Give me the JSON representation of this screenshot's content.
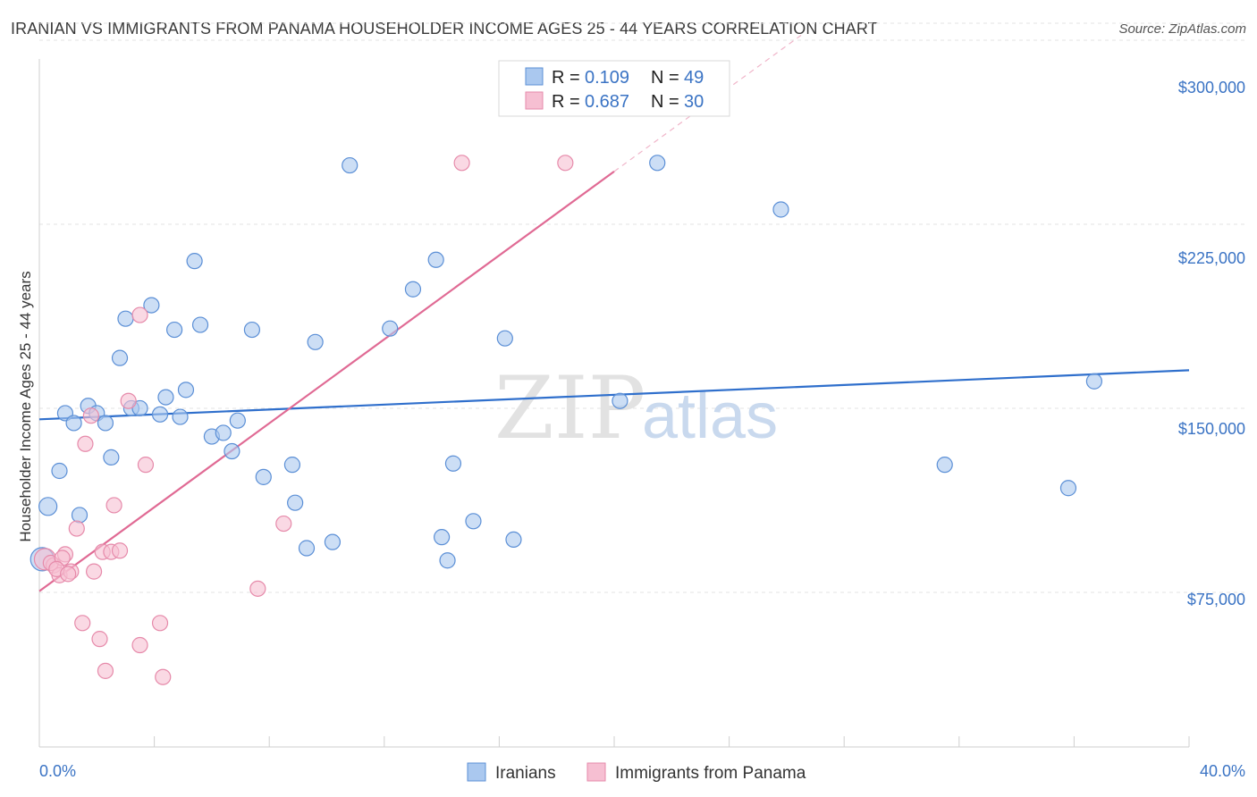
{
  "title": "IRANIAN VS IMMIGRANTS FROM PANAMA HOUSEHOLDER INCOME AGES 25 - 44 YEARS CORRELATION CHART",
  "source": "Source: ZipAtlas.com",
  "watermark": {
    "part1": "ZIP",
    "part2": "atlas"
  },
  "colors": {
    "blue_fill": "#aac8ef",
    "blue_stroke": "#5b8fd6",
    "blue_line": "#2f6fcc",
    "pink_fill": "#f6bfd2",
    "pink_stroke": "#e68aaa",
    "pink_line": "#e06a94",
    "grid": "#e3e3e3",
    "axis_text": "#3a73c4"
  },
  "legend": {
    "r_label": "R =",
    "n_label": "N =",
    "rows": [
      {
        "series": "Iranians",
        "r": "0.109",
        "n": "49"
      },
      {
        "series": "Immigrants from Panama",
        "r": "0.687",
        "n": "30"
      }
    ]
  },
  "chart_data": {
    "type": "scatter",
    "title": "IRANIAN VS IMMIGRANTS FROM PANAMA HOUSEHOLDER INCOME AGES 25 - 44 YEARS CORRELATION CHART",
    "xlabel": "",
    "ylabel": "Householder Income Ages 25 - 44 years",
    "xlim": [
      0,
      40
    ],
    "ylim": [
      12000,
      312000
    ],
    "x_tick_labels": [
      "0.0%",
      "40.0%"
    ],
    "y_ticks": [
      75000,
      150000,
      225000,
      300000
    ],
    "y_tick_labels": [
      "$75,000",
      "$150,000",
      "$225,000",
      "$300,000"
    ],
    "legend_position": "top-center",
    "grid": true,
    "series": [
      {
        "name": "Iranians",
        "trend": {
          "x0": 0,
          "y0": 145500,
          "x1": 40,
          "y1": 165500
        },
        "points": [
          {
            "x": 0.3,
            "y": 110000
          },
          {
            "x": 0.7,
            "y": 124500
          },
          {
            "x": 0.9,
            "y": 148000
          },
          {
            "x": 1.2,
            "y": 144000
          },
          {
            "x": 1.4,
            "y": 106500
          },
          {
            "x": 1.7,
            "y": 151000
          },
          {
            "x": 2.0,
            "y": 148000
          },
          {
            "x": 2.3,
            "y": 144000
          },
          {
            "x": 2.5,
            "y": 130000
          },
          {
            "x": 2.8,
            "y": 170500
          },
          {
            "x": 3.0,
            "y": 186500
          },
          {
            "x": 3.2,
            "y": 150000
          },
          {
            "x": 3.5,
            "y": 150000
          },
          {
            "x": 3.9,
            "y": 192000
          },
          {
            "x": 4.2,
            "y": 147500
          },
          {
            "x": 4.4,
            "y": 154500
          },
          {
            "x": 4.7,
            "y": 182000
          },
          {
            "x": 4.9,
            "y": 146500
          },
          {
            "x": 5.1,
            "y": 157500
          },
          {
            "x": 5.4,
            "y": 210000
          },
          {
            "x": 5.6,
            "y": 184000
          },
          {
            "x": 6.0,
            "y": 138500
          },
          {
            "x": 6.4,
            "y": 140000
          },
          {
            "x": 6.7,
            "y": 132500
          },
          {
            "x": 6.9,
            "y": 145000
          },
          {
            "x": 7.4,
            "y": 182000
          },
          {
            "x": 7.8,
            "y": 122000
          },
          {
            "x": 8.8,
            "y": 127000
          },
          {
            "x": 8.9,
            "y": 111500
          },
          {
            "x": 9.3,
            "y": 93000
          },
          {
            "x": 9.6,
            "y": 177000
          },
          {
            "x": 10.2,
            "y": 95500
          },
          {
            "x": 10.8,
            "y": 249000
          },
          {
            "x": 12.2,
            "y": 182500
          },
          {
            "x": 13.0,
            "y": 198500
          },
          {
            "x": 13.8,
            "y": 210500
          },
          {
            "x": 14.0,
            "y": 97500
          },
          {
            "x": 14.2,
            "y": 88000
          },
          {
            "x": 14.4,
            "y": 127500
          },
          {
            "x": 15.1,
            "y": 104000
          },
          {
            "x": 16.2,
            "y": 178500
          },
          {
            "x": 16.5,
            "y": 96500
          },
          {
            "x": 20.2,
            "y": 153000
          },
          {
            "x": 21.5,
            "y": 250000
          },
          {
            "x": 25.8,
            "y": 231000
          },
          {
            "x": 31.5,
            "y": 127000
          },
          {
            "x": 35.8,
            "y": 117500
          },
          {
            "x": 36.7,
            "y": 161000
          },
          {
            "x": 0.1,
            "y": 88500
          }
        ]
      },
      {
        "name": "Immigrants from Panama",
        "trend": {
          "x0": 0,
          "y0": 75500,
          "x1": 20,
          "y1": 246500,
          "dashed_to_x": 26.5,
          "dashed_to_y": 302000
        },
        "points": [
          {
            "x": 0.2,
            "y": 88500
          },
          {
            "x": 0.5,
            "y": 86000
          },
          {
            "x": 0.7,
            "y": 82000
          },
          {
            "x": 0.9,
            "y": 90500
          },
          {
            "x": 1.1,
            "y": 83500
          },
          {
            "x": 1.3,
            "y": 101000
          },
          {
            "x": 1.5,
            "y": 62500
          },
          {
            "x": 1.6,
            "y": 135500
          },
          {
            "x": 1.8,
            "y": 147000
          },
          {
            "x": 1.9,
            "y": 83500
          },
          {
            "x": 2.1,
            "y": 56000
          },
          {
            "x": 2.2,
            "y": 91500
          },
          {
            "x": 2.3,
            "y": 43000
          },
          {
            "x": 2.5,
            "y": 91500
          },
          {
            "x": 2.6,
            "y": 110500
          },
          {
            "x": 2.8,
            "y": 92000
          },
          {
            "x": 3.1,
            "y": 153000
          },
          {
            "x": 3.5,
            "y": 188000
          },
          {
            "x": 3.5,
            "y": 53500
          },
          {
            "x": 3.7,
            "y": 127000
          },
          {
            "x": 4.2,
            "y": 62500
          },
          {
            "x": 4.3,
            "y": 40500
          },
          {
            "x": 7.6,
            "y": 76500
          },
          {
            "x": 8.5,
            "y": 103000
          },
          {
            "x": 14.7,
            "y": 250000
          },
          {
            "x": 18.3,
            "y": 250000
          },
          {
            "x": 0.4,
            "y": 87000
          },
          {
            "x": 0.8,
            "y": 89000
          },
          {
            "x": 0.6,
            "y": 84500
          },
          {
            "x": 1.0,
            "y": 82500
          }
        ]
      }
    ]
  }
}
